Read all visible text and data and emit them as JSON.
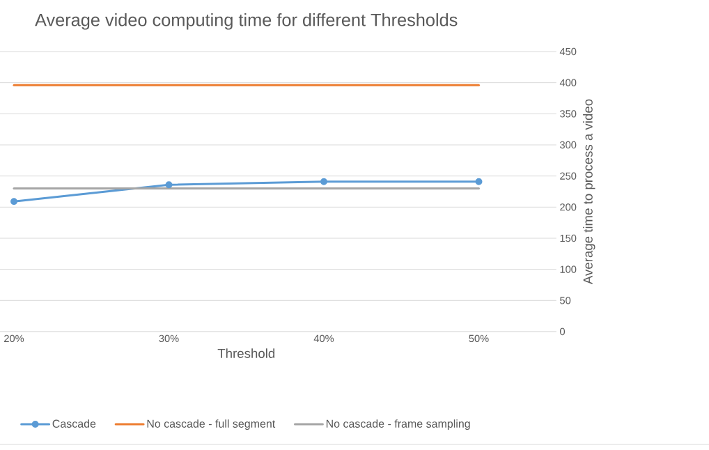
{
  "chart_data": {
    "type": "line",
    "title": "Average video computing time for different Thresholds",
    "xlabel": "Threshold",
    "ylabel": "Average time to process a video",
    "categories": [
      "20%",
      "30%",
      "40%",
      "50%"
    ],
    "series": [
      {
        "name": "Cascade",
        "color": "#5b9bd5",
        "values": [
          209,
          236,
          241,
          241
        ],
        "marker": "circle"
      },
      {
        "name": "No cascade - full segment",
        "color": "#ed7d31",
        "values": [
          396,
          396,
          396,
          396
        ],
        "marker": "none"
      },
      {
        "name": "No cascade - frame sampling",
        "color": "#a5a5a5",
        "values": [
          230,
          230,
          230,
          230
        ],
        "marker": "none"
      }
    ],
    "ylim": [
      0,
      450
    ],
    "yticks": [
      0,
      50,
      100,
      150,
      200,
      250,
      300,
      350,
      400,
      450
    ],
    "grid": "y",
    "legend": "bottom",
    "line_style": "solid"
  }
}
